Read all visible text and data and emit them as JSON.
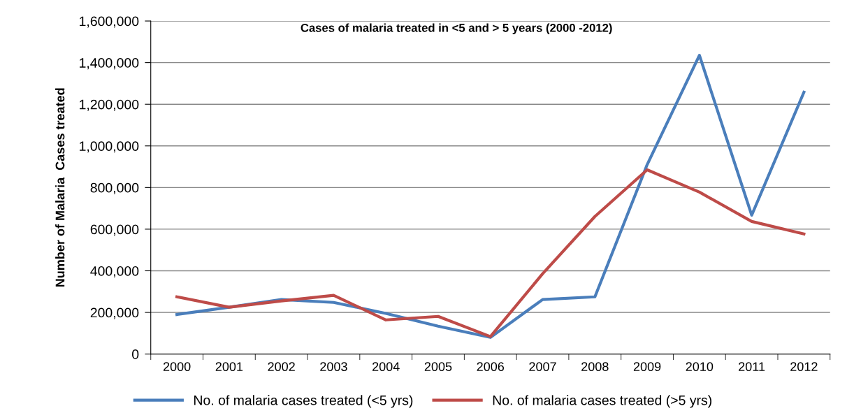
{
  "chart_data": {
    "type": "line",
    "title": "Cases of malaria treated in <5 and > 5 years (2000 -2012)",
    "ylabel": "Number of Malaria  Cases treated",
    "categories": [
      "2000",
      "2001",
      "2002",
      "2003",
      "2004",
      "2005",
      "2006",
      "2007",
      "2008",
      "2009",
      "2010",
      "2011",
      "2012"
    ],
    "series": [
      {
        "name": "No. of malaria cases treated (<5 yrs)",
        "color": "#4a7ebb",
        "values": [
          190000,
          225000,
          262000,
          248000,
          195000,
          134000,
          80000,
          262000,
          275000,
          910000,
          1435000,
          667000,
          1258000
        ]
      },
      {
        "name": "No. of malaria cases treated (>5 yrs)",
        "color": "#be4b48",
        "values": [
          275000,
          225000,
          255000,
          282000,
          164000,
          181000,
          84000,
          386000,
          661000,
          885000,
          778000,
          637000,
          577000
        ]
      }
    ],
    "ylim": [
      0,
      1600000
    ],
    "yticks": [
      {
        "value": 0,
        "label": "0"
      },
      {
        "value": 200000,
        "label": "200,000"
      },
      {
        "value": 400000,
        "label": "400,000"
      },
      {
        "value": 600000,
        "label": "600,000"
      },
      {
        "value": 800000,
        "label": "800,000"
      },
      {
        "value": 1000000,
        "label": "1,000,000"
      },
      {
        "value": 1200000,
        "label": "1,200,000"
      },
      {
        "value": 1400000,
        "label": "1,400,000"
      },
      {
        "value": 1600000,
        "label": "1,600,000"
      }
    ],
    "grid": "y",
    "legend": "bottom",
    "marker": "none",
    "line_style": "solid"
  }
}
